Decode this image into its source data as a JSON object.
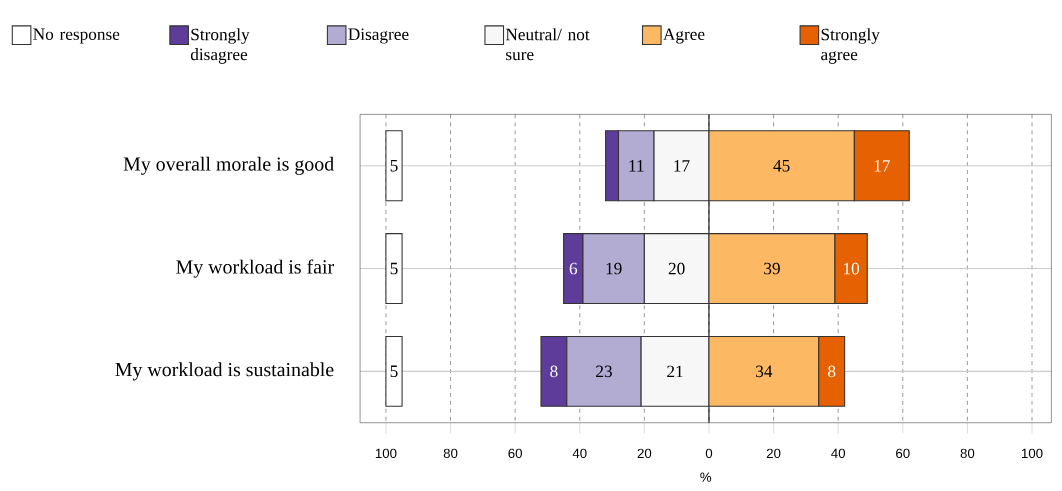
{
  "chart_data": {
    "type": "bar",
    "orientation": "horizontal",
    "xlabel": "%",
    "categories": [
      "My overall morale is good",
      "My workload is fair",
      "My workload is sustainable"
    ],
    "series": [
      {
        "name": "No response",
        "color": "#ffffff",
        "values": [
          5,
          5,
          5
        ],
        "base": [
          -100,
          -100,
          -100
        ],
        "value_labels": [
          "5",
          "5",
          "5"
        ]
      },
      {
        "name": "Strongly disagree",
        "color": "#5e3c99",
        "values": [
          4,
          6,
          8
        ],
        "base": [
          -32,
          -45,
          -52
        ],
        "value_labels": [
          null,
          "6",
          "8"
        ]
      },
      {
        "name": "Disagree",
        "color": "#b2abd2",
        "values": [
          11,
          19,
          23
        ],
        "base": [
          -28,
          -39,
          -44
        ],
        "value_labels": [
          "11",
          "19",
          "23"
        ]
      },
      {
        "name": "Neutral/ not sure",
        "color": "#f7f7f7",
        "values": [
          17,
          20,
          21
        ],
        "base": [
          -17,
          -20,
          -21
        ],
        "value_labels": [
          "17",
          "20",
          "21"
        ]
      },
      {
        "name": "Agree",
        "color": "#fdb863",
        "values": [
          45,
          39,
          34
        ],
        "base": [
          0,
          0,
          0
        ],
        "value_labels": [
          "45",
          "39",
          "34"
        ]
      },
      {
        "name": "Strongly agree",
        "color": "#e66101",
        "values": [
          17,
          10,
          8
        ],
        "base": [
          45,
          39,
          34
        ],
        "value_labels": [
          "17",
          "10",
          "8"
        ]
      }
    ],
    "xlim": [
      -108,
      106
    ],
    "xticks": [
      {
        "value": -100,
        "label": "100"
      },
      {
        "value": -80,
        "label": "80"
      },
      {
        "value": -60,
        "label": "60"
      },
      {
        "value": -40,
        "label": "40"
      },
      {
        "value": -20,
        "label": "20"
      },
      0,
      20,
      40,
      60,
      80,
      100
    ],
    "ref_lines": [
      {
        "axis": "x",
        "value": 0
      }
    ],
    "grid": true,
    "legend": "top"
  }
}
